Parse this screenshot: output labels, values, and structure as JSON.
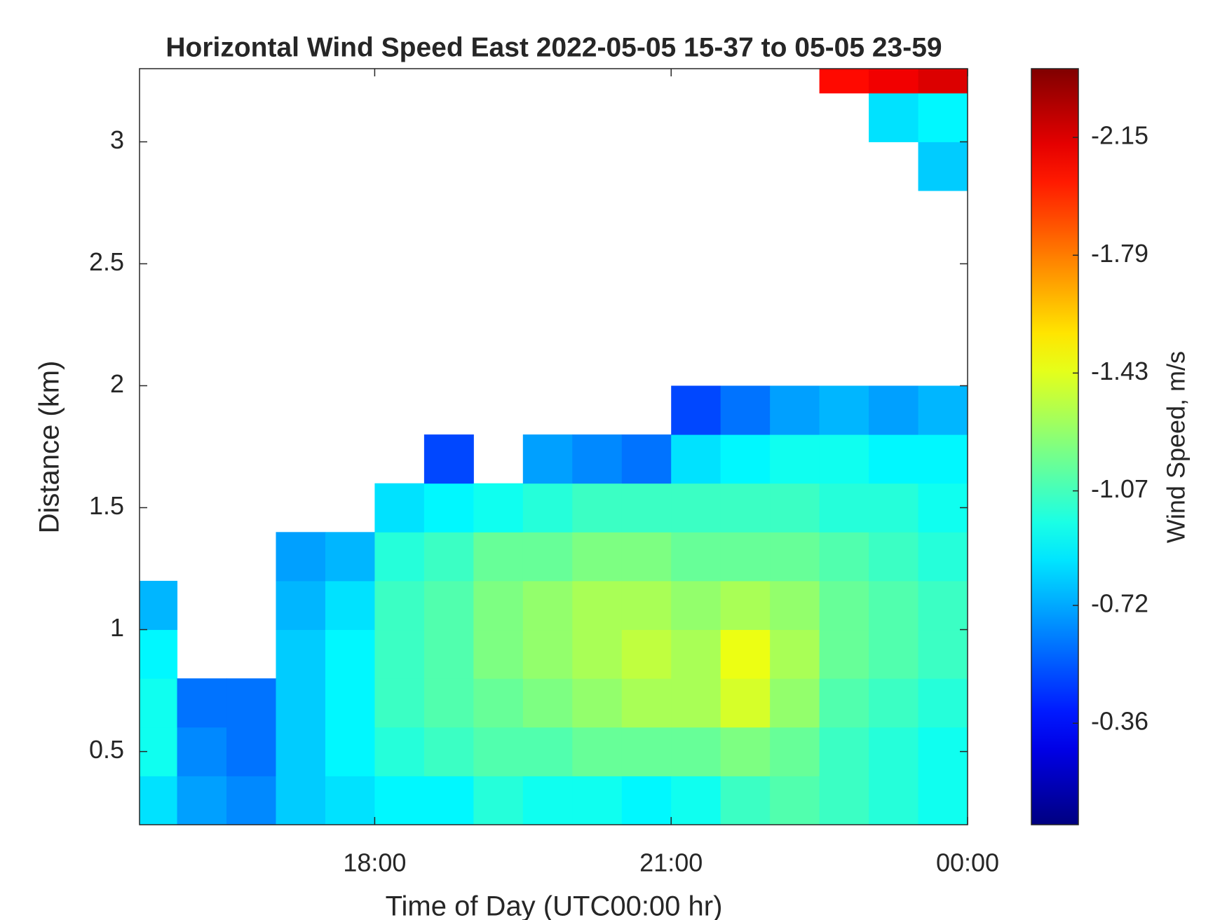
{
  "chart_data": {
    "type": "heatmap",
    "title": "Horizontal Wind Speed East 2022-05-05 15-37 to 05-05 23-59",
    "x_label": "Time of Day (UTC00:00 hr)",
    "y_label": "Distance (km)",
    "colorbar_label": "Wind Speed, m/s",
    "colormap": "jet",
    "xlim": [
      15.62,
      24
    ],
    "xticks": [
      {
        "value": 18,
        "label": "18:00"
      },
      {
        "value": 21,
        "label": "21:00"
      },
      {
        "value": 24,
        "label": "00:00"
      }
    ],
    "ylim": [
      0.2,
      3.3
    ],
    "yticks": [
      0.5,
      1,
      1.5,
      2,
      2.5,
      3
    ],
    "clim": [
      -0.05,
      -2.36
    ],
    "cticks": [
      -0.36,
      -0.72,
      -1.07,
      -1.43,
      -1.79,
      -2.15
    ],
    "x": [
      15.75,
      16.25,
      16.75,
      17.25,
      17.75,
      18.25,
      18.75,
      19.25,
      19.75,
      20.25,
      20.75,
      21.25,
      21.75,
      22.25,
      22.75,
      23.25,
      23.75
    ],
    "y": [
      0.3,
      0.5,
      0.7,
      0.9,
      1.1,
      1.3,
      1.5,
      1.7,
      1.9,
      2.1,
      2.3,
      2.5,
      2.7,
      2.9,
      3.1,
      3.3
    ],
    "z": [
      [
        -0.85,
        -0.95,
        -0.95,
        -0.9,
        -0.75,
        null,
        null,
        null,
        null,
        null,
        null,
        null,
        null,
        null,
        null,
        null
      ],
      [
        -0.7,
        -0.65,
        -0.6,
        null,
        null,
        null,
        null,
        null,
        null,
        null,
        null,
        null,
        null,
        null,
        null,
        null
      ],
      [
        -0.65,
        -0.6,
        -0.6,
        null,
        null,
        null,
        null,
        null,
        null,
        null,
        null,
        null,
        null,
        null,
        null,
        null
      ],
      [
        -0.8,
        -0.8,
        -0.8,
        -0.8,
        -0.75,
        -0.7,
        null,
        null,
        null,
        null,
        null,
        null,
        null,
        null,
        null,
        null
      ],
      [
        -0.85,
        -0.9,
        -0.9,
        -0.9,
        -0.85,
        -0.75,
        null,
        null,
        null,
        null,
        null,
        null,
        null,
        null,
        null,
        null
      ],
      [
        -0.9,
        -1.0,
        -1.05,
        -1.05,
        -1.05,
        -1.0,
        -0.85,
        null,
        null,
        null,
        null,
        null,
        null,
        null,
        null,
        null
      ],
      [
        -0.9,
        -1.05,
        -1.1,
        -1.1,
        -1.1,
        -1.05,
        -0.9,
        -0.5,
        null,
        null,
        null,
        null,
        null,
        null,
        null,
        null
      ],
      [
        -1.0,
        -1.1,
        -1.15,
        -1.2,
        -1.2,
        -1.15,
        -0.95,
        null,
        null,
        null,
        null,
        null,
        null,
        null,
        null,
        null
      ],
      [
        -0.95,
        -1.1,
        -1.2,
        -1.25,
        -1.25,
        -1.15,
        -1.0,
        -0.7,
        null,
        null,
        null,
        null,
        null,
        null,
        null,
        null
      ],
      [
        -0.95,
        -1.15,
        -1.25,
        -1.3,
        -1.3,
        -1.2,
        -1.05,
        -0.65,
        null,
        null,
        null,
        null,
        null,
        null,
        null,
        null
      ],
      [
        -0.9,
        -1.15,
        -1.3,
        -1.35,
        -1.3,
        -1.2,
        -1.05,
        -0.6,
        null,
        null,
        null,
        null,
        null,
        null,
        null,
        null
      ],
      [
        -0.95,
        -1.15,
        -1.3,
        -1.3,
        -1.25,
        -1.15,
        -1.05,
        -0.85,
        -0.5,
        null,
        null,
        null,
        null,
        null,
        null,
        null
      ],
      [
        -1.05,
        -1.2,
        -1.4,
        -1.45,
        -1.3,
        -1.15,
        -1.05,
        -0.9,
        -0.6,
        null,
        null,
        null,
        null,
        null,
        null,
        null
      ],
      [
        -1.1,
        -1.15,
        -1.25,
        -1.3,
        -1.25,
        -1.15,
        -1.05,
        -0.95,
        -0.7,
        null,
        null,
        null,
        null,
        null,
        null,
        null
      ],
      [
        -1.05,
        -1.05,
        -1.1,
        -1.15,
        -1.15,
        -1.1,
        -1.0,
        -0.95,
        -0.75,
        null,
        null,
        null,
        null,
        null,
        null,
        -2.05
      ],
      [
        -1.0,
        -1.0,
        -1.05,
        -1.1,
        -1.1,
        -1.05,
        -1.0,
        -0.9,
        -0.7,
        null,
        null,
        null,
        null,
        null,
        -0.85,
        -2.1
      ],
      [
        -0.95,
        -0.95,
        -1.0,
        -1.05,
        -1.05,
        -1.0,
        -0.95,
        -0.9,
        -0.75,
        null,
        null,
        null,
        null,
        -0.8,
        -0.9,
        -2.15
      ]
    ]
  }
}
